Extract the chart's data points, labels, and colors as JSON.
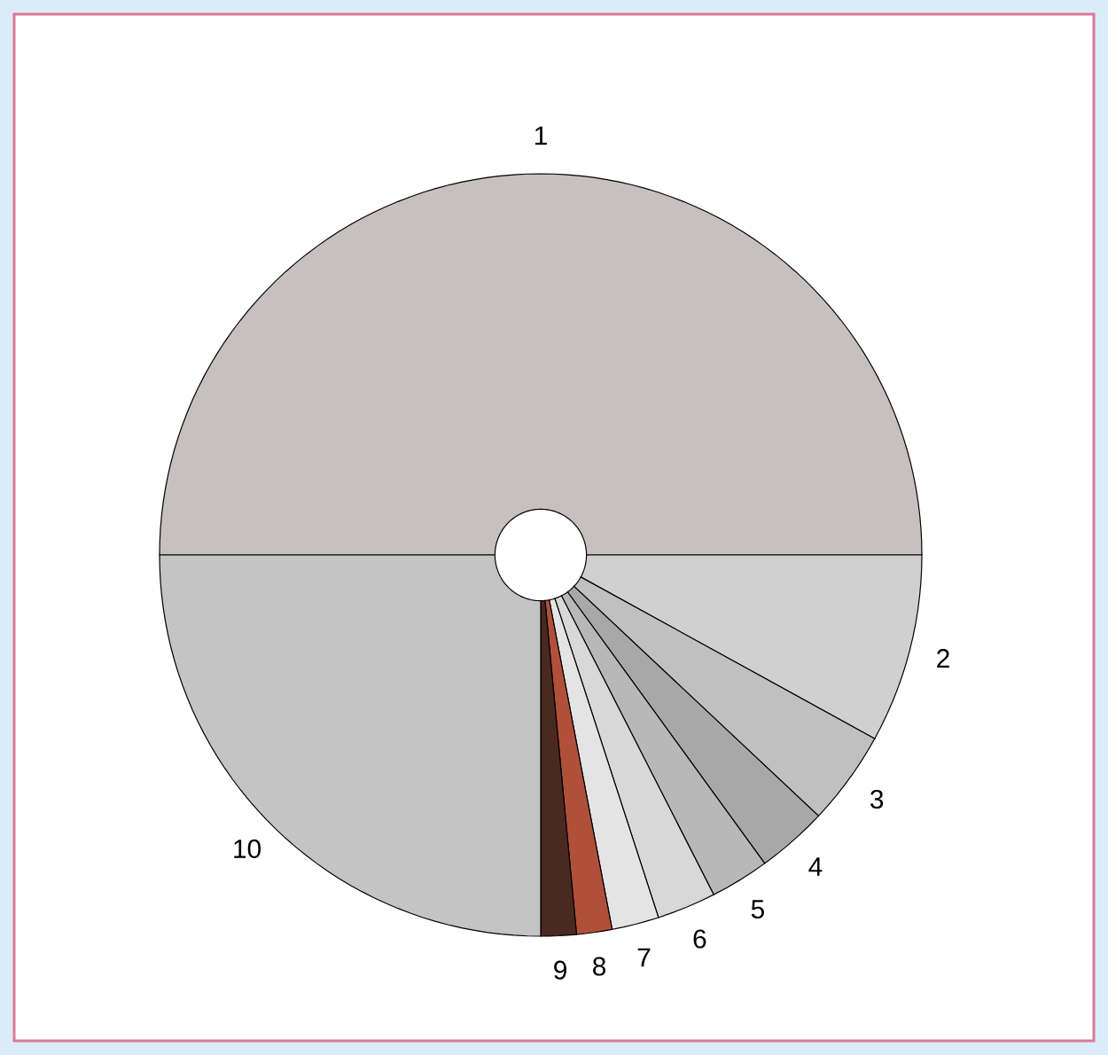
{
  "chart_data": {
    "type": "pie",
    "categories": [
      "1",
      "2",
      "3",
      "4",
      "5",
      "6",
      "7",
      "8",
      "9",
      "10"
    ],
    "values": [
      50,
      8,
      4,
      3,
      2.5,
      2.5,
      2,
      1.5,
      1.5,
      25
    ],
    "colors": [
      "#c8c0c0",
      "#d0d0d0",
      "#c0c0c0",
      "#a8a8a8",
      "#b8b8b8",
      "#d8d8d8",
      "#e4e4e4",
      "#b0503a",
      "#4a2a20",
      "#c4c4c4"
    ]
  }
}
